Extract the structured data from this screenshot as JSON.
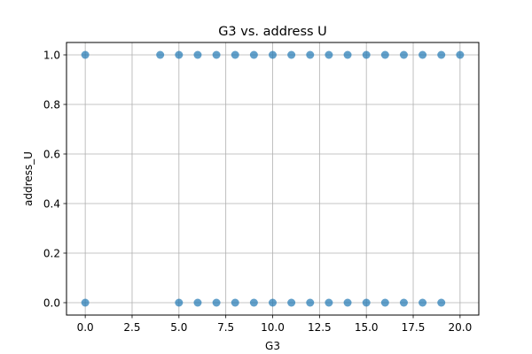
{
  "chart_data": {
    "type": "scatter",
    "title": "G3 vs. address U",
    "xlabel": "G3",
    "ylabel": "address_U",
    "xlim": [
      -1.0,
      21.0
    ],
    "ylim": [
      -0.05,
      1.05
    ],
    "xticks": [
      0.0,
      2.5,
      5.0,
      7.5,
      10.0,
      12.5,
      15.0,
      17.5,
      20.0
    ],
    "xtick_labels": [
      "0.0",
      "2.5",
      "5.0",
      "7.5",
      "10.0",
      "12.5",
      "15.0",
      "17.5",
      "20.0"
    ],
    "yticks": [
      0.0,
      0.2,
      0.4,
      0.6,
      0.8,
      1.0
    ],
    "ytick_labels": [
      "0.0",
      "0.2",
      "0.4",
      "0.6",
      "0.8",
      "1.0"
    ],
    "grid": true,
    "marker_color": "#1f77b4",
    "series": [
      {
        "points": [
          {
            "x": 0,
            "y": 1
          },
          {
            "x": 4,
            "y": 1
          },
          {
            "x": 5,
            "y": 1
          },
          {
            "x": 6,
            "y": 1
          },
          {
            "x": 7,
            "y": 1
          },
          {
            "x": 8,
            "y": 1
          },
          {
            "x": 9,
            "y": 1
          },
          {
            "x": 10,
            "y": 1
          },
          {
            "x": 11,
            "y": 1
          },
          {
            "x": 12,
            "y": 1
          },
          {
            "x": 13,
            "y": 1
          },
          {
            "x": 14,
            "y": 1
          },
          {
            "x": 15,
            "y": 1
          },
          {
            "x": 16,
            "y": 1
          },
          {
            "x": 17,
            "y": 1
          },
          {
            "x": 18,
            "y": 1
          },
          {
            "x": 19,
            "y": 1
          },
          {
            "x": 20,
            "y": 1
          },
          {
            "x": 0,
            "y": 0
          },
          {
            "x": 5,
            "y": 0
          },
          {
            "x": 6,
            "y": 0
          },
          {
            "x": 7,
            "y": 0
          },
          {
            "x": 8,
            "y": 0
          },
          {
            "x": 9,
            "y": 0
          },
          {
            "x": 10,
            "y": 0
          },
          {
            "x": 11,
            "y": 0
          },
          {
            "x": 12,
            "y": 0
          },
          {
            "x": 13,
            "y": 0
          },
          {
            "x": 14,
            "y": 0
          },
          {
            "x": 15,
            "y": 0
          },
          {
            "x": 16,
            "y": 0
          },
          {
            "x": 17,
            "y": 0
          },
          {
            "x": 18,
            "y": 0
          },
          {
            "x": 19,
            "y": 0
          }
        ]
      }
    ]
  }
}
